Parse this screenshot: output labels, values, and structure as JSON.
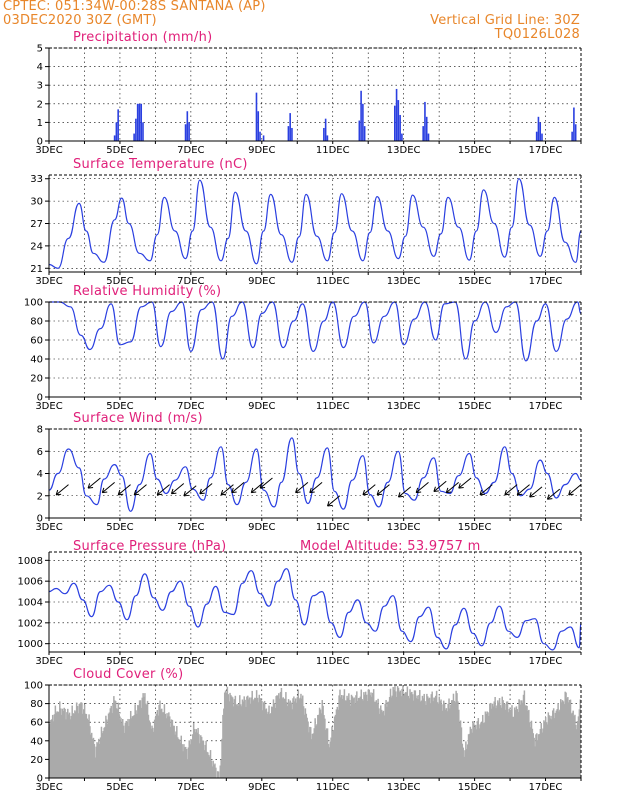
{
  "header": {
    "line1": "CPTEC:   051:34W-00:28S   SANTANA (AP)",
    "line2": "03DEC2020 30Z (GMT)",
    "grid_note": "Vertical Grid Line: 30Z",
    "model_code": "TQ0126L028"
  },
  "colors": {
    "header": "#e8862a",
    "title": "#e0207a",
    "line": "#2a3fe0",
    "bar": "#2a3fe0",
    "cloud": "#aaaaaa"
  },
  "x_axis": {
    "start_day": 3,
    "end_day": 18,
    "tick_labels": [
      "3DEC",
      "5DEC",
      "7DEC",
      "9DEC",
      "11DEC",
      "13DEC",
      "15DEC",
      "17DEC"
    ]
  },
  "chart_data": [
    {
      "id": "precip",
      "type": "bar",
      "title": "Precipitation (mm/h)",
      "ylim": [
        0,
        5
      ],
      "yticks": [
        0,
        1,
        2,
        3,
        4,
        5
      ],
      "x": [
        4.85,
        4.9,
        4.95,
        5.4,
        5.45,
        5.5,
        5.55,
        5.6,
        5.65,
        6.85,
        6.9,
        6.95,
        8.85,
        8.9,
        8.95,
        9.05,
        9.75,
        9.8,
        9.85,
        10.75,
        10.8,
        10.85,
        11.75,
        11.8,
        11.85,
        11.9,
        12.75,
        12.8,
        12.85,
        12.9,
        12.95,
        13.55,
        13.6,
        13.65,
        13.7,
        16.75,
        16.8,
        16.85,
        16.9,
        17.75,
        17.8,
        17.85
      ],
      "y": [
        0.3,
        1.0,
        1.7,
        0.4,
        1.2,
        2.0,
        2.0,
        2.0,
        1.0,
        0.9,
        1.6,
        1.0,
        2.6,
        1.6,
        0.5,
        0.3,
        0.8,
        1.5,
        0.7,
        0.7,
        1.2,
        0.3,
        1.1,
        2.7,
        2.0,
        0.8,
        1.9,
        2.8,
        2.2,
        1.4,
        0.4,
        0.8,
        2.1,
        1.3,
        0.4,
        0.5,
        1.3,
        1.0,
        0.4,
        0.5,
        1.8,
        0.9
      ]
    },
    {
      "id": "temp",
      "type": "line",
      "title": "Surface Temperature (nC)",
      "ylim": [
        20.5,
        33.5
      ],
      "yticks": [
        21,
        24,
        27,
        30,
        33
      ],
      "x": [
        3.0,
        3.25,
        3.55,
        3.85,
        4.05,
        4.25,
        4.55,
        4.85,
        5.05,
        5.25,
        5.55,
        5.85,
        6.05,
        6.25,
        6.55,
        6.85,
        7.05,
        7.25,
        7.55,
        7.85,
        8.05,
        8.25,
        8.55,
        8.85,
        9.05,
        9.25,
        9.55,
        9.85,
        10.05,
        10.25,
        10.55,
        10.85,
        11.05,
        11.25,
        11.55,
        11.85,
        12.05,
        12.25,
        12.55,
        12.85,
        13.05,
        13.25,
        13.55,
        13.85,
        14.05,
        14.25,
        14.55,
        14.85,
        15.05,
        15.25,
        15.55,
        15.85,
        16.05,
        16.25,
        16.55,
        16.85,
        17.05,
        17.25,
        17.55,
        17.85,
        18.0
      ],
      "y": [
        21.5,
        21,
        25,
        29.7,
        26,
        23,
        21.8,
        27.5,
        30.4,
        27,
        23,
        22,
        25.5,
        30.5,
        26,
        22.3,
        26,
        32.8,
        26.5,
        22,
        25,
        31.2,
        26,
        21.6,
        26,
        30.9,
        25.5,
        21.8,
        25.2,
        30.9,
        25.3,
        22.0,
        25.8,
        31.0,
        26.0,
        22.0,
        25.8,
        30.6,
        26.0,
        22.3,
        25.3,
        30.8,
        26.5,
        22.6,
        25.6,
        30.5,
        26.5,
        22.1,
        26.0,
        31.5,
        27.0,
        22.5,
        26.5,
        33.0,
        26.8,
        22.6,
        26.0,
        30.5,
        24.5,
        21.8,
        26.0
      ]
    },
    {
      "id": "rh",
      "type": "line",
      "title": "Relative Humidity (%)",
      "ylim": [
        0,
        100
      ],
      "yticks": [
        0,
        20,
        40,
        60,
        80,
        100
      ],
      "x": [
        3.0,
        3.3,
        3.6,
        3.9,
        4.15,
        4.45,
        4.75,
        5.0,
        5.3,
        5.6,
        5.9,
        6.15,
        6.45,
        6.75,
        7.0,
        7.3,
        7.6,
        7.9,
        8.15,
        8.45,
        8.75,
        9.0,
        9.3,
        9.6,
        9.9,
        10.15,
        10.45,
        10.75,
        11.0,
        11.3,
        11.6,
        11.9,
        12.15,
        12.45,
        12.75,
        13.0,
        13.3,
        13.6,
        13.9,
        14.15,
        14.45,
        14.75,
        15.0,
        15.3,
        15.6,
        15.9,
        16.15,
        16.45,
        16.75,
        17.0,
        17.3,
        17.6,
        17.9,
        18.0
      ],
      "y": [
        100,
        100,
        95,
        65,
        50,
        72,
        98,
        55,
        58,
        95,
        100,
        53,
        90,
        100,
        48,
        92,
        100,
        40,
        85,
        100,
        52,
        88,
        100,
        52,
        80,
        98,
        48,
        80,
        100,
        52,
        85,
        100,
        57,
        85,
        100,
        55,
        82,
        100,
        60,
        98,
        100,
        40,
        80,
        100,
        68,
        95,
        100,
        38,
        80,
        98,
        48,
        82,
        100,
        88
      ]
    },
    {
      "id": "wind",
      "type": "line",
      "title": "Surface Wind (m/s)",
      "ylim": [
        0,
        8
      ],
      "yticks": [
        0,
        2,
        4,
        6,
        8
      ],
      "x": [
        3.0,
        3.25,
        3.55,
        3.85,
        4.05,
        4.35,
        4.55,
        4.85,
        5.05,
        5.3,
        5.55,
        5.85,
        6.05,
        6.3,
        6.55,
        6.85,
        7.05,
        7.35,
        7.55,
        7.85,
        8.05,
        8.3,
        8.55,
        8.85,
        9.05,
        9.35,
        9.55,
        9.85,
        10.05,
        10.3,
        10.55,
        10.85,
        11.05,
        11.3,
        11.55,
        11.85,
        12.05,
        12.3,
        12.55,
        12.85,
        13.05,
        13.3,
        13.55,
        13.85,
        14.05,
        14.3,
        14.55,
        14.85,
        15.05,
        15.3,
        15.55,
        15.85,
        16.05,
        16.3,
        16.55,
        16.85,
        17.05,
        17.3,
        17.55,
        17.85,
        18.0
      ],
      "y": [
        2.5,
        4.0,
        6.2,
        4.5,
        2.0,
        1.2,
        3.5,
        4.8,
        3.8,
        0.6,
        3.0,
        5.8,
        3.5,
        2.2,
        3.4,
        4.6,
        2.6,
        1.6,
        3.6,
        6.4,
        3.0,
        1.2,
        3.2,
        6.2,
        2.5,
        1.0,
        3.2,
        7.2,
        4.0,
        1.3,
        3.6,
        6.3,
        2.4,
        0.8,
        3.4,
        5.6,
        2.1,
        1.0,
        3.2,
        6.0,
        2.2,
        1.6,
        3.6,
        5.4,
        2.4,
        2.2,
        3.8,
        5.8,
        3.6,
        2.2,
        3.2,
        6.4,
        4.0,
        2.0,
        2.6,
        5.2,
        4.0,
        1.8,
        3.0,
        4.0,
        3.4
      ],
      "arrows": [
        {
          "x": 3.55,
          "y": 3.0
        },
        {
          "x": 4.45,
          "y": 3.6
        },
        {
          "x": 4.85,
          "y": 3.2
        },
        {
          "x": 5.3,
          "y": 3.0
        },
        {
          "x": 5.75,
          "y": 3.0
        },
        {
          "x": 6.4,
          "y": 3.0
        },
        {
          "x": 6.8,
          "y": 3.1
        },
        {
          "x": 7.15,
          "y": 2.9
        },
        {
          "x": 7.6,
          "y": 3.1
        },
        {
          "x": 8.2,
          "y": 3.0
        },
        {
          "x": 8.5,
          "y": 3.2
        },
        {
          "x": 9.05,
          "y": 3.2
        },
        {
          "x": 9.3,
          "y": 3.6
        },
        {
          "x": 10.3,
          "y": 3.2
        },
        {
          "x": 10.7,
          "y": 3.2
        },
        {
          "x": 11.2,
          "y": 2.0
        },
        {
          "x": 12.2,
          "y": 3.0
        },
        {
          "x": 12.6,
          "y": 3.0
        },
        {
          "x": 13.2,
          "y": 2.8
        },
        {
          "x": 13.7,
          "y": 3.2
        },
        {
          "x": 14.2,
          "y": 3.3
        },
        {
          "x": 14.55,
          "y": 3.2
        },
        {
          "x": 14.9,
          "y": 3.6
        },
        {
          "x": 15.5,
          "y": 3.0
        },
        {
          "x": 16.2,
          "y": 3.0
        },
        {
          "x": 16.55,
          "y": 3.0
        },
        {
          "x": 16.9,
          "y": 2.8
        },
        {
          "x": 17.4,
          "y": 2.6
        },
        {
          "x": 18.0,
          "y": 3.0
        }
      ]
    },
    {
      "id": "pres",
      "type": "line",
      "title": "Surface Pressure (hPa)",
      "annotation": "Model Altitude: 53.9757 m",
      "ylim": [
        999.2,
        1008.8
      ],
      "yticks": [
        1000,
        1002,
        1004,
        1006,
        1008
      ],
      "x": [
        3.0,
        3.2,
        3.45,
        3.7,
        3.95,
        4.2,
        4.45,
        4.7,
        4.95,
        5.2,
        5.45,
        5.7,
        5.95,
        6.2,
        6.45,
        6.7,
        6.95,
        7.2,
        7.45,
        7.7,
        7.95,
        8.2,
        8.45,
        8.7,
        8.95,
        9.2,
        9.45,
        9.7,
        9.95,
        10.2,
        10.45,
        10.7,
        10.95,
        11.2,
        11.45,
        11.7,
        11.95,
        12.2,
        12.45,
        12.7,
        12.95,
        13.2,
        13.45,
        13.7,
        13.95,
        14.2,
        14.45,
        14.7,
        14.95,
        15.2,
        15.45,
        15.7,
        15.95,
        16.2,
        16.45,
        16.7,
        16.95,
        17.2,
        17.45,
        17.7,
        17.95,
        18.0
      ],
      "y": [
        1005,
        1005.3,
        1004.8,
        1005.8,
        1004.2,
        1002.6,
        1005,
        1005.6,
        1004.0,
        1002.3,
        1004.6,
        1006.7,
        1004.4,
        1003.2,
        1005.0,
        1006.0,
        1003.6,
        1001.6,
        1003.8,
        1005.5,
        1003.0,
        1002.8,
        1005.8,
        1007.0,
        1004.8,
        1003.6,
        1006.0,
        1007.2,
        1004.2,
        1001.8,
        1004.6,
        1005.0,
        1002.0,
        1000.6,
        1003.0,
        1004.2,
        1002.0,
        1001.2,
        1003.6,
        1004.6,
        1001.2,
        1000.2,
        1002.6,
        1003.5,
        1000.6,
        999.5,
        1001.8,
        1003.4,
        1001.0,
        999.8,
        1002.0,
        1003.6,
        1001.2,
        1000.6,
        1002.2,
        1002.4,
        1000.0,
        999.4,
        1001.2,
        1001.6,
        999.6,
        1002.0
      ]
    },
    {
      "id": "cloud",
      "type": "area",
      "title": "Cloud Cover (%)",
      "ylim": [
        0,
        100
      ],
      "yticks": [
        0,
        20,
        40,
        60,
        80,
        100
      ],
      "x": [
        3.0,
        3.15,
        3.3,
        3.6,
        3.9,
        4.1,
        4.3,
        4.6,
        4.85,
        5.1,
        5.4,
        5.7,
        5.9,
        6.1,
        6.4,
        6.7,
        6.9,
        7.1,
        7.4,
        7.7,
        7.8,
        7.85,
        7.95,
        8.3,
        8.6,
        8.9,
        9.2,
        9.5,
        9.8,
        10.1,
        10.4,
        10.7,
        10.9,
        11.2,
        11.5,
        11.8,
        12.1,
        12.4,
        12.7,
        13.0,
        13.3,
        13.6,
        13.9,
        14.2,
        14.5,
        14.7,
        14.9,
        15.2,
        15.5,
        15.8,
        16.1,
        16.4,
        16.7,
        17.0,
        17.3,
        17.6,
        17.9,
        18.0
      ],
      "y": [
        55,
        70,
        75,
        68,
        80,
        65,
        30,
        60,
        85,
        55,
        70,
        90,
        50,
        78,
        65,
        40,
        28,
        55,
        35,
        10,
        0,
        25,
        95,
        80,
        85,
        88,
        70,
        92,
        80,
        90,
        45,
        80,
        35,
        90,
        85,
        88,
        92,
        70,
        95,
        93,
        90,
        85,
        88,
        75,
        90,
        25,
        55,
        60,
        80,
        82,
        70,
        88,
        40,
        62,
        72,
        90,
        55,
        95
      ]
    }
  ]
}
